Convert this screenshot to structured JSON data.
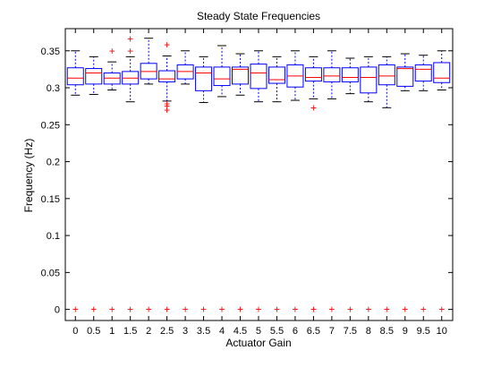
{
  "chart_data": {
    "type": "box",
    "title": "Steady State Frequencies",
    "xlabel": "Actuator Gain",
    "ylabel": "Frequency (Hz)",
    "ylim": [
      -0.015,
      0.38
    ],
    "yticks": [
      "0",
      "0.05",
      "0.1",
      "0.15",
      "0.2",
      "0.25",
      "0.3",
      "0.35"
    ],
    "ytick_values": [
      0,
      0.05,
      0.1,
      0.15,
      0.2,
      0.25,
      0.3,
      0.35
    ],
    "grid": false,
    "categories": [
      "0",
      "0.5",
      "1",
      "1.5",
      "2",
      "2.5",
      "3",
      "3.5",
      "4",
      "4.5",
      "5",
      "5.5",
      "6",
      "6.5",
      "7",
      "7.5",
      "8",
      "8.5",
      "9",
      "9.5",
      "10"
    ],
    "boxes": [
      {
        "q1": 0.304,
        "median": 0.313,
        "q3": 0.327,
        "whisker_low": 0.29,
        "whisker_high": 0.35,
        "outliers": [
          0
        ]
      },
      {
        "q1": 0.305,
        "median": 0.32,
        "q3": 0.326,
        "whisker_low": 0.291,
        "whisker_high": 0.342,
        "outliers": [
          0
        ]
      },
      {
        "q1": 0.305,
        "median": 0.313,
        "q3": 0.32,
        "whisker_low": 0.297,
        "whisker_high": 0.335,
        "outliers": [
          0.35,
          0
        ]
      },
      {
        "q1": 0.305,
        "median": 0.313,
        "q3": 0.322,
        "whisker_low": 0.281,
        "whisker_high": 0.342,
        "outliers": [
          0.366,
          0.35,
          0
        ]
      },
      {
        "q1": 0.312,
        "median": 0.322,
        "q3": 0.333,
        "whisker_low": 0.305,
        "whisker_high": 0.367,
        "outliers": [
          0
        ]
      },
      {
        "q1": 0.308,
        "median": 0.312,
        "q3": 0.323,
        "whisker_low": 0.282,
        "whisker_high": 0.343,
        "outliers": [
          0.358,
          0.278,
          0.275,
          0.27,
          0
        ]
      },
      {
        "q1": 0.312,
        "median": 0.322,
        "q3": 0.331,
        "whisker_low": 0.305,
        "whisker_high": 0.35,
        "outliers": [
          0
        ]
      },
      {
        "q1": 0.296,
        "median": 0.32,
        "q3": 0.328,
        "whisker_low": 0.28,
        "whisker_high": 0.342,
        "outliers": [
          0
        ]
      },
      {
        "q1": 0.303,
        "median": 0.312,
        "q3": 0.328,
        "whisker_low": 0.288,
        "whisker_high": 0.357,
        "outliers": [
          0
        ]
      },
      {
        "q1": 0.305,
        "median": 0.325,
        "q3": 0.328,
        "whisker_low": 0.29,
        "whisker_high": 0.346,
        "outliers": [
          0
        ]
      },
      {
        "q1": 0.299,
        "median": 0.32,
        "q3": 0.332,
        "whisker_low": 0.281,
        "whisker_high": 0.35,
        "outliers": [
          0
        ]
      },
      {
        "q1": 0.306,
        "median": 0.311,
        "q3": 0.328,
        "whisker_low": 0.281,
        "whisker_high": 0.342,
        "outliers": [
          0
        ]
      },
      {
        "q1": 0.301,
        "median": 0.316,
        "q3": 0.331,
        "whisker_low": 0.283,
        "whisker_high": 0.35,
        "outliers": [
          0
        ]
      },
      {
        "q1": 0.309,
        "median": 0.314,
        "q3": 0.327,
        "whisker_low": 0.285,
        "whisker_high": 0.342,
        "outliers": [
          0.273,
          0
        ]
      },
      {
        "q1": 0.308,
        "median": 0.316,
        "q3": 0.327,
        "whisker_low": 0.285,
        "whisker_high": 0.35,
        "outliers": [
          0
        ]
      },
      {
        "q1": 0.308,
        "median": 0.314,
        "q3": 0.327,
        "whisker_low": 0.292,
        "whisker_high": 0.34,
        "outliers": [
          0
        ]
      },
      {
        "q1": 0.293,
        "median": 0.314,
        "q3": 0.328,
        "whisker_low": 0.281,
        "whisker_high": 0.342,
        "outliers": [
          0
        ]
      },
      {
        "q1": 0.304,
        "median": 0.316,
        "q3": 0.331,
        "whisker_low": 0.273,
        "whisker_high": 0.342,
        "outliers": [
          0
        ]
      },
      {
        "q1": 0.302,
        "median": 0.326,
        "q3": 0.328,
        "whisker_low": 0.296,
        "whisker_high": 0.346,
        "outliers": [
          0
        ]
      },
      {
        "q1": 0.309,
        "median": 0.325,
        "q3": 0.331,
        "whisker_low": 0.296,
        "whisker_high": 0.344,
        "outliers": [
          0
        ]
      },
      {
        "q1": 0.307,
        "median": 0.313,
        "q3": 0.334,
        "whisker_low": 0.297,
        "whisker_high": 0.35,
        "outliers": [
          0
        ]
      }
    ],
    "colors": {
      "box": "#0000ff",
      "median": "#ff0000",
      "whisker": "#000000",
      "whisker_dash": "#0000ff",
      "outlier": "#ff0000",
      "axes": "#000000"
    }
  }
}
